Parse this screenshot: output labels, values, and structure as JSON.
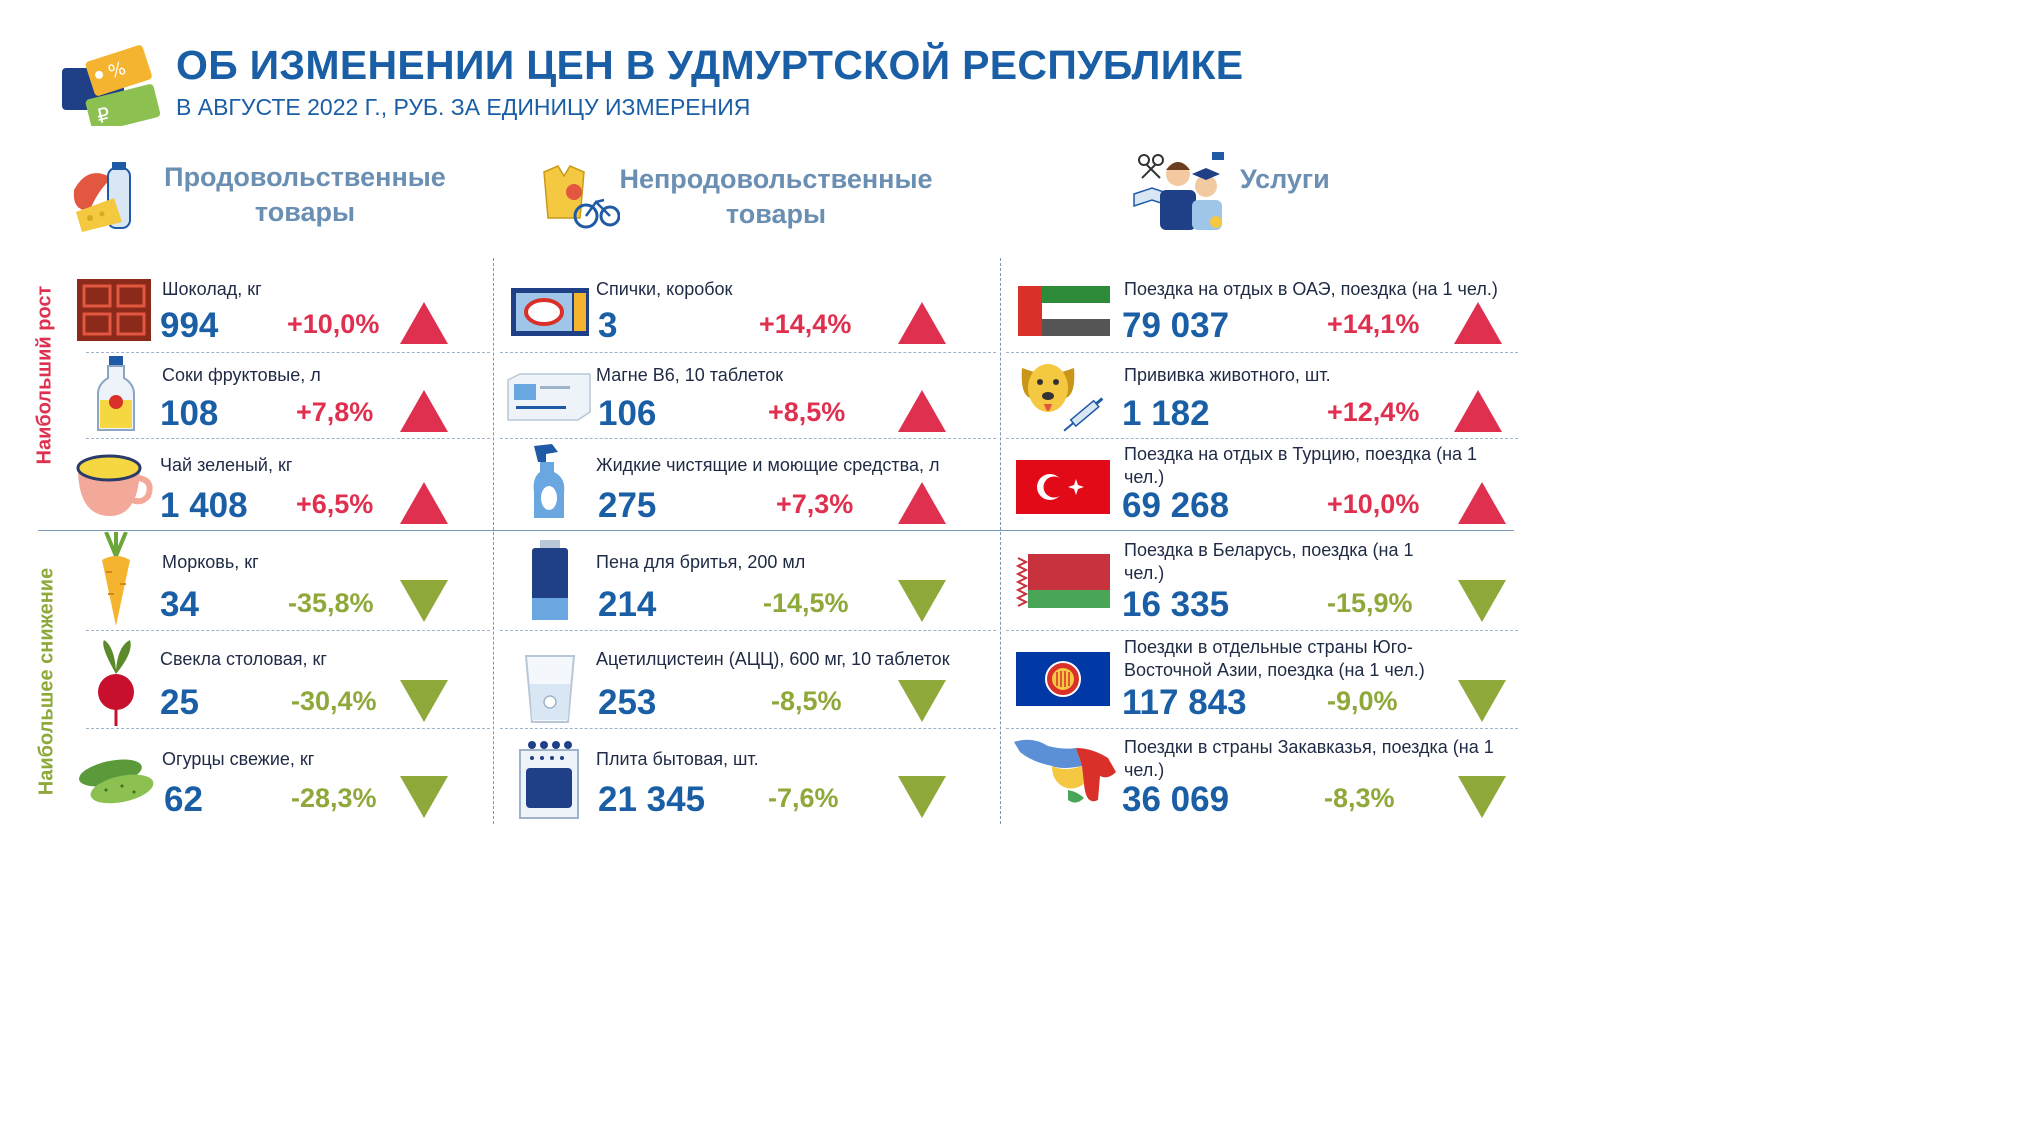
{
  "header": {
    "title": "ОБ ИЗМЕНЕНИИ ЦЕН В УДМУРТСКОЙ РЕСПУБЛИКЕ",
    "subtitle": "В АВГУСТЕ 2022 Г., РУБ. ЗА ЕДИНИЦУ ИЗМЕРЕНИЯ",
    "logo_icon": "price-tags-icon"
  },
  "side_labels": {
    "growth": "Наибольший рост",
    "decline": "Наибольшее снижение"
  },
  "columns": [
    {
      "title_line1": "Продовольственные",
      "title_line2": "товары",
      "icon": "food-icon"
    },
    {
      "title_line1": "Непродовольственные",
      "title_line2": "товары",
      "icon": "nonfood-icon"
    },
    {
      "title_line1": "Услуги",
      "title_line2": "",
      "icon": "services-icon"
    }
  ],
  "colors": {
    "title": "#1a5ea5",
    "up": "#e03050",
    "down": "#8ea83a",
    "header_gray": "#6b8fb3"
  },
  "items": {
    "food": [
      {
        "name": "Шоколад, кг",
        "price": "994",
        "change": "+10,0%",
        "direction": "up",
        "icon": "chocolate-icon"
      },
      {
        "name": "Соки фруктовые, л",
        "price": "108",
        "change": "+7,8%",
        "direction": "up",
        "icon": "juice-bottle-icon"
      },
      {
        "name": "Чай зеленый, кг",
        "price": "1 408",
        "change": "+6,5%",
        "direction": "up",
        "icon": "tea-cup-icon"
      },
      {
        "name": "Морковь, кг",
        "price": "34",
        "change": "-35,8%",
        "direction": "down",
        "icon": "carrot-icon"
      },
      {
        "name": "Свекла столовая, кг",
        "price": "25",
        "change": "-30,4%",
        "direction": "down",
        "icon": "beet-icon"
      },
      {
        "name": "Огурцы свежие, кг",
        "price": "62",
        "change": "-28,3%",
        "direction": "down",
        "icon": "cucumber-icon"
      }
    ],
    "nonfood": [
      {
        "name": "Спички, коробок",
        "price": "3",
        "change": "+14,4%",
        "direction": "up",
        "icon": "matchbox-icon"
      },
      {
        "name": "Магне В6, 10 таблеток",
        "price": "106",
        "change": "+8,5%",
        "direction": "up",
        "icon": "pill-box-icon"
      },
      {
        "name": "Жидкие чистящие и моющие средства, л",
        "price": "275",
        "change": "+7,3%",
        "direction": "up",
        "icon": "spray-bottle-icon"
      },
      {
        "name": "Пена для бритья, 200 мл",
        "price": "214",
        "change": "-14,5%",
        "direction": "down",
        "icon": "shaving-foam-icon"
      },
      {
        "name": "Ацетилцистеин (АЦЦ), 600 мг, 10 таблеток",
        "price": "253",
        "change": "-8,5%",
        "direction": "down",
        "icon": "glass-tablet-icon"
      },
      {
        "name": "Плита бытовая, шт.",
        "price": "21 345",
        "change": "-7,6%",
        "direction": "down",
        "icon": "stove-icon"
      }
    ],
    "services": [
      {
        "name": "Поездка на отдых в ОАЭ, поездка (на 1 чел.)",
        "price": "79 037",
        "change": "+14,1%",
        "direction": "up",
        "icon": "uae-flag-icon"
      },
      {
        "name": "Прививка животного, шт.",
        "price": "1 182",
        "change": "+12,4%",
        "direction": "up",
        "icon": "dog-vaccine-icon"
      },
      {
        "name": "Поездка на отдых в Турцию, поездка (на 1 чел.)",
        "price": "69 268",
        "change": "+10,0%",
        "direction": "up",
        "icon": "turkey-flag-icon"
      },
      {
        "name": "Поездка в Беларусь, поездка (на 1 чел.)",
        "price": "16 335",
        "change": "-15,9%",
        "direction": "down",
        "icon": "belarus-flag-icon"
      },
      {
        "name": "Поездки в отдельные страны Юго-Восточной Азии, поездка (на 1 чел.)",
        "price": "117 843",
        "change": "-9,0%",
        "direction": "down",
        "icon": "asean-flag-icon"
      },
      {
        "name": "Поездки в страны Закавказья, поездка (на 1 чел.)",
        "price": "36 069",
        "change": "-8,3%",
        "direction": "down",
        "icon": "caucasus-map-icon"
      }
    ]
  }
}
